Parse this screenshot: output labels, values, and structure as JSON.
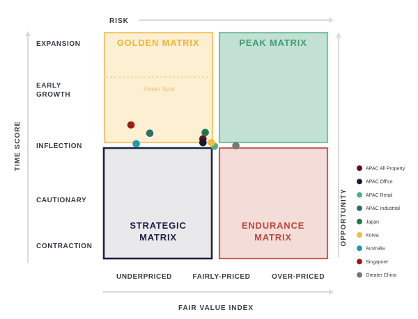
{
  "chart_data": {
    "type": "scatter",
    "title": "",
    "xlabel": "FAIR VALUE INDEX",
    "ylabel": "TIME SCORE",
    "top_arrow_label": "RISK",
    "right_arrow_label": "OPPORTUNITY",
    "x_categories": [
      "UNDERPRICED",
      "FAIRLY-PRICED",
      "OVER-PRICED"
    ],
    "y_categories": [
      "CONTRACTION",
      "CAUTIONARY",
      "INFLECTION",
      "EARLY GROWTH",
      "EXPANSION"
    ],
    "x_range": [
      0,
      3
    ],
    "y_range": [
      0,
      5
    ],
    "quadrants": [
      {
        "name": "golden",
        "lines": [
          "GOLDEN MATRIX"
        ],
        "fill": "#fdf0d2",
        "stroke": "#f3c976",
        "text_color": "#f0b43c"
      },
      {
        "name": "peak",
        "lines": [
          "PEAK MATRIX"
        ],
        "fill": "#c3e1d3",
        "stroke": "#7cc3a6",
        "text_color": "#3f9a7a"
      },
      {
        "name": "strategic",
        "lines": [
          "STRATEGIC",
          "MATRIX"
        ],
        "fill": "#e9e9ec",
        "stroke": "#1c2340",
        "text_color": "#1c2340"
      },
      {
        "name": "endurance",
        "lines": [
          "ENDURANCE",
          "MATRIX"
        ],
        "fill": "#f4ddd9",
        "stroke": "#c76356",
        "text_color": "#b8493d"
      }
    ],
    "annotation": "Sweet Spot",
    "series": [
      {
        "name": "APAC All Property",
        "color": "#5c1318",
        "x": 1.33,
        "y": 2.15
      },
      {
        "name": "APAC Office",
        "color": "#171a36",
        "x": 1.33,
        "y": 2.05
      },
      {
        "name": "APAC Retail",
        "color": "#4fae8e",
        "x": 1.48,
        "y": 1.97
      },
      {
        "name": "APAC Industrial",
        "color": "#2e6f6b",
        "x": 0.63,
        "y": 2.3
      },
      {
        "name": "Japan",
        "color": "#1d7a48",
        "x": 1.36,
        "y": 2.32
      },
      {
        "name": "Korea",
        "color": "#f2bd3c",
        "x": 1.44,
        "y": 2.05
      },
      {
        "name": "Australia",
        "color": "#1d9bb2",
        "x": 0.45,
        "y": 2.02
      },
      {
        "name": "Singapore",
        "color": "#9c1b15",
        "x": 0.38,
        "y": 2.52
      },
      {
        "name": "Greater China",
        "color": "#777777",
        "x": 1.76,
        "y": 1.98
      }
    ],
    "grid": false,
    "legend_position": "right"
  }
}
